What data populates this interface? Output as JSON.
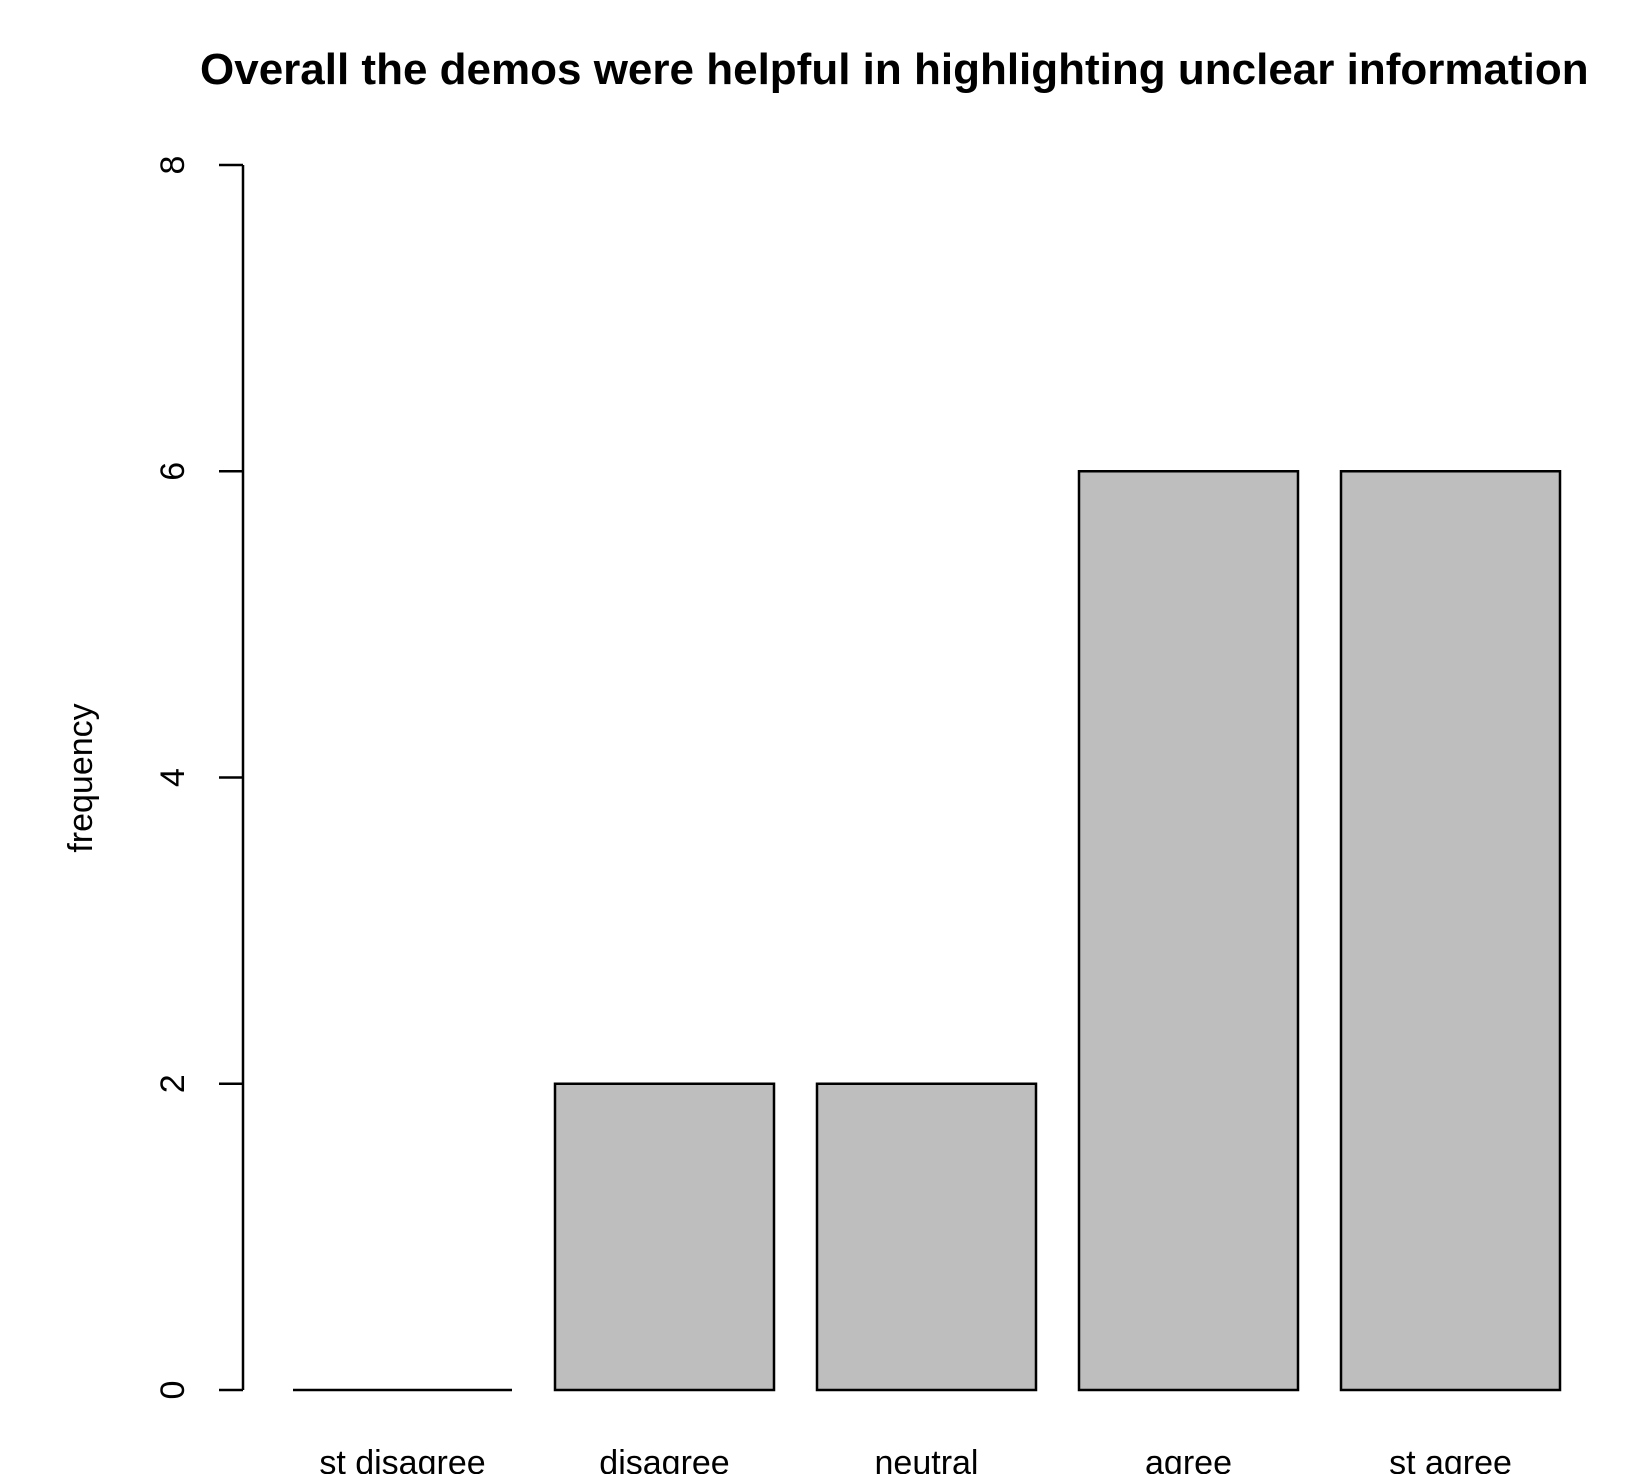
{
  "chart_data": {
    "type": "bar",
    "title": "Overall the demos were helpful in highlighting unclear information",
    "xlabel": "",
    "ylabel": "frequency",
    "categories": [
      "st disagree",
      "disagree",
      "neutral",
      "agree",
      "st agree"
    ],
    "values": [
      0,
      2,
      2,
      6,
      6
    ],
    "ylim": [
      0,
      8
    ],
    "yticks": [
      "0",
      "2",
      "4",
      "6",
      "8"
    ],
    "grid": false,
    "legend": "none",
    "colors": {
      "bar_fill": "#bebebe",
      "bar_stroke": "#000000",
      "axis": "#000000",
      "background": "#ffffff"
    }
  }
}
